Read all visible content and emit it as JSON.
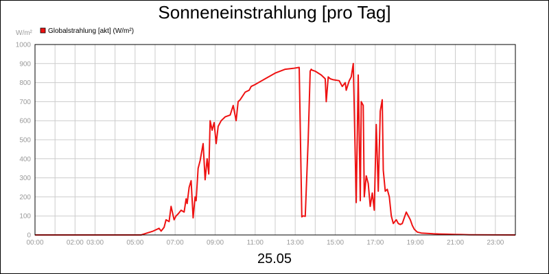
{
  "chart_data": {
    "type": "line",
    "title": "Sonneneinstrahlung [pro Tag]",
    "ylabel": "W/m²",
    "date_label": "25.05",
    "legend": {
      "label": "Globalstrahlung [akt] (W/m²)",
      "color": "#ee1111",
      "placement": "top-left"
    },
    "ylim": [
      0,
      1000
    ],
    "y_ticks": [
      "0",
      "100",
      "200",
      "300",
      "400",
      "500",
      "600",
      "700",
      "800",
      "900",
      "1000"
    ],
    "xlim": [
      0,
      24
    ],
    "x_ticks": [
      {
        "t": 0,
        "label": "00:00"
      },
      {
        "t": 2,
        "label": "02:00"
      },
      {
        "t": 3,
        "label": "03:00"
      },
      {
        "t": 5,
        "label": "05:00"
      },
      {
        "t": 7,
        "label": "07:00"
      },
      {
        "t": 9,
        "label": "09:00"
      },
      {
        "t": 11,
        "label": "11:00"
      },
      {
        "t": 13,
        "label": "13:00"
      },
      {
        "t": 15,
        "label": "15:00"
      },
      {
        "t": 17,
        "label": "17:00"
      },
      {
        "t": 19,
        "label": "19:00"
      },
      {
        "t": 21,
        "label": "21:00"
      },
      {
        "t": 23,
        "label": "23:00"
      }
    ],
    "grid": true,
    "series": [
      {
        "name": "Globalstrahlung [akt] (W/m²)",
        "color": "#ee1111",
        "x": [
          0,
          5.3,
          5.6,
          5.9,
          6.2,
          6.3,
          6.45,
          6.55,
          6.7,
          6.8,
          6.95,
          7.05,
          7.15,
          7.3,
          7.45,
          7.55,
          7.6,
          7.7,
          7.8,
          7.9,
          8.0,
          8.05,
          8.15,
          8.25,
          8.4,
          8.5,
          8.6,
          8.68,
          8.75,
          8.85,
          8.95,
          9.05,
          9.15,
          9.3,
          9.5,
          9.75,
          9.9,
          10.05,
          10.15,
          10.25,
          10.5,
          10.7,
          10.8,
          11.0,
          11.5,
          12.0,
          12.5,
          12.9,
          13.2,
          13.33,
          13.4,
          13.5,
          13.65,
          13.75,
          13.8,
          13.85,
          14.0,
          14.3,
          14.5,
          14.55,
          14.65,
          14.75,
          14.9,
          15.2,
          15.35,
          15.5,
          15.55,
          15.7,
          15.8,
          15.9,
          16.05,
          16.15,
          16.25,
          16.3,
          16.4,
          16.45,
          16.55,
          16.65,
          16.75,
          16.85,
          16.95,
          17.05,
          17.15,
          17.25,
          17.35,
          17.4,
          17.5,
          17.6,
          17.7,
          17.8,
          17.9,
          18.05,
          18.15,
          18.25,
          18.35,
          18.55,
          18.75,
          18.85,
          18.95,
          19.1,
          19.3,
          19.6,
          19.9,
          20.2,
          20.6,
          21.0,
          21.3,
          21.7,
          24.0
        ],
        "values": [
          0,
          0,
          10,
          20,
          35,
          20,
          40,
          80,
          70,
          150,
          80,
          100,
          110,
          130,
          120,
          190,
          165,
          250,
          285,
          90,
          200,
          180,
          350,
          390,
          480,
          290,
          400,
          320,
          600,
          550,
          590,
          480,
          570,
          600,
          620,
          630,
          680,
          600,
          700,
          710,
          750,
          760,
          780,
          790,
          820,
          850,
          870,
          875,
          880,
          95,
          100,
          98,
          500,
          860,
          870,
          865,
          860,
          840,
          820,
          700,
          830,
          820,
          815,
          810,
          780,
          800,
          760,
          810,
          830,
          900,
          170,
          840,
          180,
          700,
          680,
          200,
          310,
          270,
          150,
          220,
          130,
          580,
          230,
          650,
          710,
          340,
          230,
          240,
          200,
          100,
          60,
          80,
          60,
          55,
          60,
          120,
          80,
          50,
          30,
          15,
          10,
          8,
          6,
          5,
          4,
          3,
          2,
          1,
          0
        ]
      }
    ]
  }
}
